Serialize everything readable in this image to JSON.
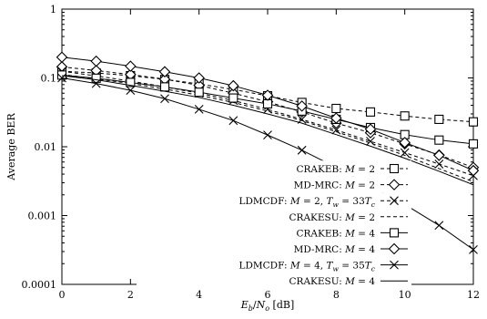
{
  "chart_data": {
    "type": "line",
    "title": "",
    "xlabel": "E_b/N_o [dB]",
    "xlabel_parts": {
      "main": "E",
      "sub1": "b",
      "slash": "/N",
      "sub2": "o",
      "unit": " [dB]"
    },
    "ylabel": "Average BER",
    "x": [
      0,
      1,
      2,
      3,
      4,
      5,
      6,
      7,
      8,
      9,
      10,
      11,
      12
    ],
    "xlim": [
      0,
      12
    ],
    "ylim": [
      0.0001,
      1
    ],
    "yscale": "log",
    "grid": false,
    "legend_position": "bottom-right",
    "x_ticks": [
      "0",
      "2",
      "4",
      "6",
      "8",
      "10",
      "12"
    ],
    "y_ticks": [
      "1",
      "0.1",
      "0.01",
      "0.001",
      "0.0001"
    ],
    "series": [
      {
        "name": "CRAKEB: M = 2",
        "legend_parts": [
          "CRAKEB: ",
          "M",
          " = 2"
        ],
        "style": "dashed",
        "marker": "square",
        "values": [
          0.125,
          0.118,
          0.108,
          0.095,
          0.082,
          0.068,
          0.055,
          0.044,
          0.036,
          0.032,
          0.028,
          0.025,
          0.023
        ]
      },
      {
        "name": "MD-MRC: M = 2",
        "legend_parts": [
          "MD-MRC: ",
          "M",
          " = 2"
        ],
        "style": "dashed",
        "marker": "diamond",
        "values": [
          0.145,
          0.128,
          0.112,
          0.096,
          0.078,
          0.06,
          0.045,
          0.032,
          0.022,
          0.016,
          0.011,
          0.0076,
          0.005
        ]
      },
      {
        "name": "LDMCDF: M = 2, T_w = 33T_c",
        "legend_parts": [
          "LDMCDF: ",
          "M",
          " = 2, ",
          "T",
          "w",
          " = 33",
          "T",
          "c"
        ],
        "style": "dashed",
        "marker": "x",
        "values": [
          0.125,
          0.107,
          0.09,
          0.074,
          0.06,
          0.047,
          0.035,
          0.025,
          0.0175,
          0.012,
          0.0082,
          0.0056,
          0.0038
        ]
      },
      {
        "name": "CRAKESU: M = 2",
        "legend_parts": [
          "CRAKESU: ",
          "M",
          " = 2"
        ],
        "style": "dashed",
        "marker": "none",
        "values": [
          0.112,
          0.097,
          0.083,
          0.069,
          0.056,
          0.044,
          0.033,
          0.024,
          0.0165,
          0.0113,
          0.0075,
          0.0048,
          0.0031
        ]
      },
      {
        "name": "CRAKEB: M = 4",
        "legend_parts": [
          "CRAKEB: ",
          "M",
          " = 4"
        ],
        "style": "solid",
        "marker": "square",
        "values": [
          0.11,
          0.099,
          0.086,
          0.074,
          0.062,
          0.051,
          0.042,
          0.033,
          0.025,
          0.019,
          0.015,
          0.0125,
          0.011
        ]
      },
      {
        "name": "MD-MRC: M = 4",
        "legend_parts": [
          "MD-MRC: ",
          "M",
          " = 4"
        ],
        "style": "solid",
        "marker": "diamond",
        "values": [
          0.2,
          0.175,
          0.148,
          0.123,
          0.1,
          0.077,
          0.056,
          0.039,
          0.026,
          0.018,
          0.0115,
          0.0075,
          0.0045
        ]
      },
      {
        "name": "LDMCDF: M = 4, T_w = 35T_c",
        "legend_parts": [
          "LDMCDF: ",
          "M",
          " = 4, ",
          "T",
          "w",
          " = 35",
          "T",
          "c"
        ],
        "style": "solid",
        "marker": "x",
        "values": [
          0.1,
          0.083,
          0.066,
          0.05,
          0.035,
          0.024,
          0.0148,
          0.0089,
          0.005,
          0.0027,
          0.00145,
          0.00072,
          0.00032
        ]
      },
      {
        "name": "CRAKESU: M = 4",
        "legend_parts": [
          "CRAKESU: ",
          "M",
          " = 4"
        ],
        "style": "solid",
        "marker": "none",
        "values": [
          0.108,
          0.094,
          0.078,
          0.064,
          0.052,
          0.04,
          0.03,
          0.022,
          0.015,
          0.0102,
          0.0068,
          0.0044,
          0.0028
        ]
      }
    ]
  }
}
